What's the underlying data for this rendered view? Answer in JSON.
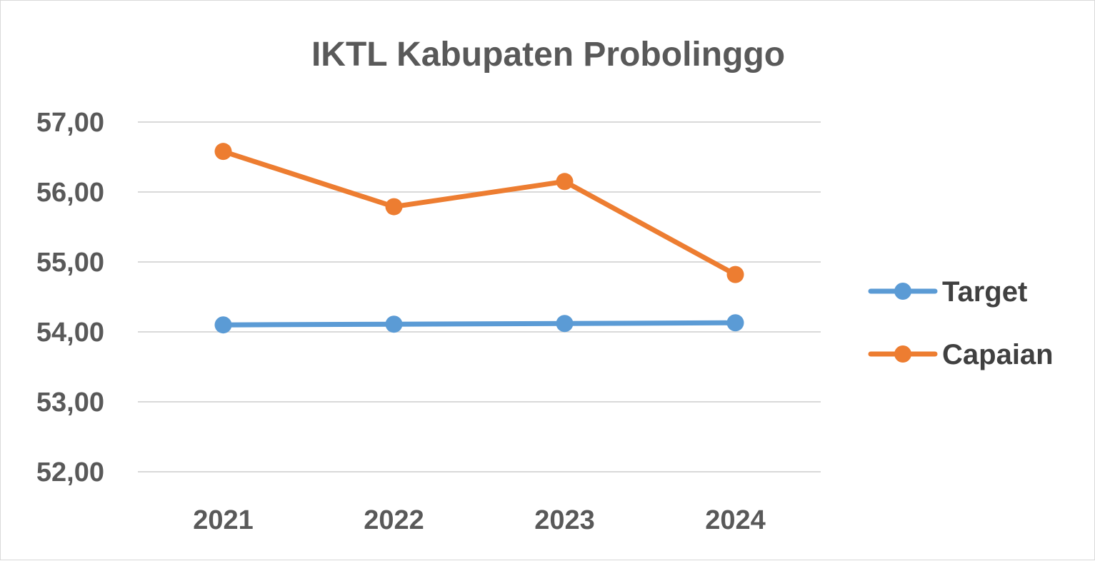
{
  "chart_data": {
    "type": "line",
    "title": "IKTL Kabupaten Probolinggo",
    "xlabel": "",
    "ylabel": "",
    "categories": [
      "2021",
      "2022",
      "2023",
      "2024"
    ],
    "series": [
      {
        "name": "Target",
        "values": [
          54.1,
          54.11,
          54.12,
          54.13
        ],
        "color": "#5b9bd5"
      },
      {
        "name": "Capaian",
        "values": [
          56.58,
          55.79,
          56.15,
          54.82
        ],
        "color": "#ed7d31"
      }
    ],
    "ylim": [
      52,
      57
    ],
    "yticks": [
      "52,00",
      "53,00",
      "54,00",
      "55,00",
      "56,00",
      "57,00"
    ],
    "grid": true,
    "legend_position": "right",
    "gridline_color": "#d9d9d9"
  }
}
